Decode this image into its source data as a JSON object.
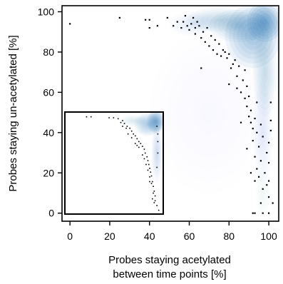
{
  "chart_data": {
    "type": "heatmap",
    "title": "",
    "xlabel_lines": [
      "Probes staying acetylated",
      "between time points [%]"
    ],
    "ylabel": "Probes staying un-acetylated [%]",
    "xlim": [
      -4,
      105
    ],
    "ylim": [
      -4,
      103
    ],
    "x_ticks": [
      0,
      20,
      40,
      60,
      80,
      100
    ],
    "y_ticks": [
      0,
      20,
      40,
      60,
      80,
      100
    ],
    "x_tick_labels": [
      "0",
      "20",
      "40",
      "60",
      "80",
      "100"
    ],
    "y_tick_labels": [
      "0",
      "20",
      "40",
      "60",
      "80",
      "100"
    ],
    "grid": false,
    "legend": "none",
    "density_color": "#1f6fb4",
    "point_color": "#000000",
    "density_blobs": [
      {
        "x": 98,
        "y": 95,
        "rx": 9,
        "ry": 10,
        "weight": 1.0
      },
      {
        "x": 92,
        "y": 88,
        "rx": 14,
        "ry": 16,
        "weight": 0.7
      },
      {
        "x": 85,
        "y": 93,
        "rx": 15,
        "ry": 8,
        "weight": 0.5
      },
      {
        "x": 75,
        "y": 96,
        "rx": 16,
        "ry": 6,
        "weight": 0.35
      },
      {
        "x": 98,
        "y": 70,
        "rx": 6,
        "ry": 22,
        "weight": 0.35
      },
      {
        "x": 97,
        "y": 40,
        "rx": 5,
        "ry": 25,
        "weight": 0.18
      },
      {
        "x": 62,
        "y": 94,
        "rx": 12,
        "ry": 6,
        "weight": 0.2
      },
      {
        "x": 97,
        "y": 10,
        "rx": 4,
        "ry": 12,
        "weight": 0.08
      },
      {
        "x": 70,
        "y": 50,
        "rx": 30,
        "ry": 40,
        "weight": 0.05
      }
    ],
    "points": [
      [
        0,
        94
      ],
      [
        25,
        97
      ],
      [
        38,
        96
      ],
      [
        40,
        92
      ],
      [
        40,
        96
      ],
      [
        44,
        93
      ],
      [
        49,
        97
      ],
      [
        52,
        93
      ],
      [
        54,
        95
      ],
      [
        56,
        92
      ],
      [
        57,
        95
      ],
      [
        58,
        98
      ],
      [
        59,
        93
      ],
      [
        60,
        91
      ],
      [
        61,
        94
      ],
      [
        62,
        97
      ],
      [
        63,
        92
      ],
      [
        63,
        89
      ],
      [
        64,
        95
      ],
      [
        65,
        93
      ],
      [
        66,
        87
      ],
      [
        67,
        90
      ],
      [
        68,
        85
      ],
      [
        69,
        92
      ],
      [
        70,
        83
      ],
      [
        71,
        88
      ],
      [
        72,
        81
      ],
      [
        73,
        86
      ],
      [
        74,
        79
      ],
      [
        75,
        84
      ],
      [
        76,
        78
      ],
      [
        77,
        81
      ],
      [
        78,
        80
      ],
      [
        79,
        77
      ],
      [
        80,
        79
      ],
      [
        81,
        72
      ],
      [
        82,
        74
      ],
      [
        83,
        76
      ],
      [
        84,
        62
      ],
      [
        84,
        68
      ],
      [
        85,
        73
      ],
      [
        86,
        60
      ],
      [
        87,
        66
      ],
      [
        88,
        57
      ],
      [
        88,
        71
      ],
      [
        89,
        53
      ],
      [
        89,
        63
      ],
      [
        90,
        48
      ],
      [
        90,
        58
      ],
      [
        91,
        45
      ],
      [
        91,
        51
      ],
      [
        92,
        42
      ],
      [
        92,
        36
      ],
      [
        93,
        47
      ],
      [
        93,
        28
      ],
      [
        93,
        16
      ],
      [
        94,
        55
      ],
      [
        94,
        40
      ],
      [
        94,
        22
      ],
      [
        95,
        33
      ],
      [
        95,
        18
      ],
      [
        96,
        44
      ],
      [
        96,
        26
      ],
      [
        97,
        12
      ],
      [
        97,
        38
      ],
      [
        98,
        20
      ],
      [
        99,
        30
      ],
      [
        100,
        35
      ],
      [
        100,
        25
      ],
      [
        100,
        16
      ],
      [
        101,
        55
      ],
      [
        101,
        41
      ],
      [
        101,
        46
      ],
      [
        102,
        5
      ],
      [
        66,
        72
      ],
      [
        80,
        64
      ],
      [
        86,
        45
      ],
      [
        89,
        32
      ],
      [
        91,
        20
      ],
      [
        92,
        0
      ],
      [
        93,
        0
      ],
      [
        97,
        0
      ],
      [
        100,
        0
      ],
      [
        96,
        5
      ],
      [
        99,
        14
      ],
      [
        100,
        8
      ]
    ],
    "inset": {
      "xlim": [
        -4,
        105
      ],
      "ylim": [
        -4,
        103
      ],
      "density_blobs": [
        {
          "x": 97,
          "y": 93,
          "rx": 10,
          "ry": 12,
          "weight": 1.0
        },
        {
          "x": 88,
          "y": 90,
          "rx": 15,
          "ry": 12,
          "weight": 0.6
        },
        {
          "x": 98,
          "y": 60,
          "rx": 6,
          "ry": 30,
          "weight": 0.3
        },
        {
          "x": 72,
          "y": 94,
          "rx": 16,
          "ry": 6,
          "weight": 0.25
        }
      ],
      "points": [
        [
          20,
          98
        ],
        [
          25,
          98
        ],
        [
          45,
          97
        ],
        [
          55,
          96
        ],
        [
          60,
          94
        ],
        [
          62,
          91
        ],
        [
          65,
          88
        ],
        [
          68,
          86
        ],
        [
          70,
          83
        ],
        [
          72,
          80
        ],
        [
          74,
          78
        ],
        [
          76,
          75
        ],
        [
          78,
          72
        ],
        [
          80,
          70
        ],
        [
          82,
          67
        ],
        [
          84,
          64
        ],
        [
          85,
          60
        ],
        [
          87,
          56
        ],
        [
          88,
          52
        ],
        [
          89,
          48
        ],
        [
          90,
          44
        ],
        [
          91,
          40
        ],
        [
          92,
          36
        ],
        [
          93,
          30
        ],
        [
          94,
          25
        ],
        [
          95,
          20
        ],
        [
          96,
          15
        ],
        [
          60,
          88
        ],
        [
          66,
          80
        ],
        [
          70,
          76
        ],
        [
          74,
          70
        ],
        [
          78,
          66
        ],
        [
          82,
          58
        ],
        [
          86,
          48
        ],
        [
          88,
          42
        ],
        [
          90,
          35
        ],
        [
          92,
          28
        ],
        [
          94,
          18
        ],
        [
          96,
          10
        ],
        [
          98,
          5
        ],
        [
          100,
          0
        ],
        [
          50,
          97
        ],
        [
          58,
          92
        ],
        [
          64,
          86
        ],
        [
          76,
          68
        ],
        [
          84,
          54
        ],
        [
          90,
          30
        ],
        [
          93,
          12
        ],
        [
          95,
          8
        ],
        [
          98,
          88
        ],
        [
          99,
          72
        ],
        [
          99,
          80
        ],
        [
          99,
          60
        ],
        [
          98,
          45
        ]
      ]
    }
  }
}
